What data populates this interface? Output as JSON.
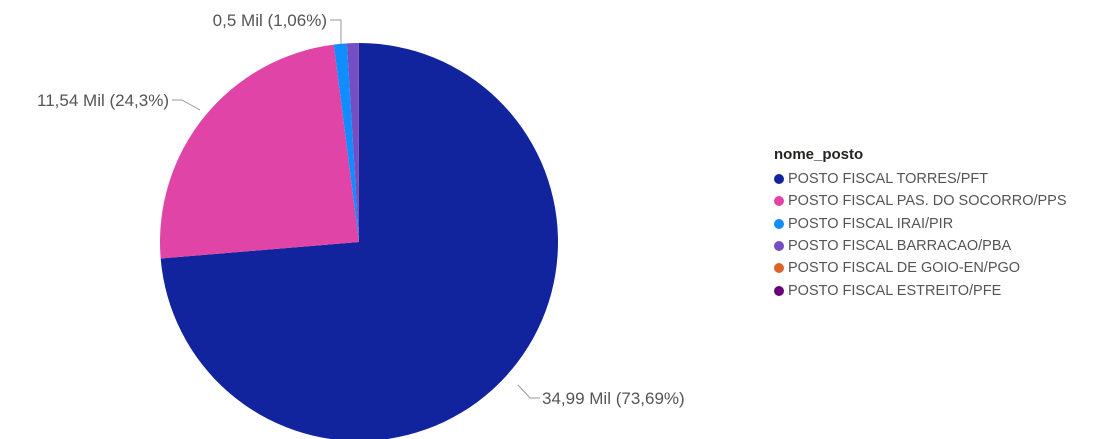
{
  "chart_data": {
    "type": "pie",
    "categories": [
      "POSTO FISCAL TORRES/PFT",
      "POSTO FISCAL PAS. DO SOCORRO/PPS",
      "POSTO FISCAL IRAI/PIR",
      "POSTO FISCAL BARRACAO/PBA",
      "POSTO FISCAL DE GOIO-EN/PGO",
      "POSTO FISCAL ESTREITO/PFE"
    ],
    "values": [
      34.99,
      11.54,
      0.5,
      0.45,
      0.005,
      0.005
    ],
    "percentages": [
      73.69,
      24.3,
      1.06,
      0.94,
      0.01,
      0.01
    ],
    "colors": [
      "#12239E",
      "#E044A7",
      "#118DFF",
      "#744EC2",
      "#D9652B",
      "#6B007B"
    ],
    "data_labels": [
      "34,99 Mil (73,69%)",
      "11,54 Mil (24,3%)",
      "0,5 Mil (1,06%)",
      "",
      "",
      ""
    ],
    "legend_title": "nome_posto",
    "legend_position": "right",
    "start_angle_deg": 0,
    "direction": "clockwise"
  }
}
